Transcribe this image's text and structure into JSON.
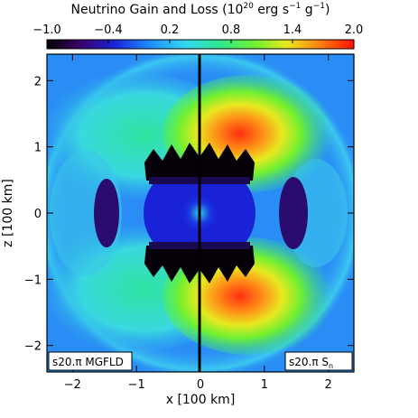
{
  "chart_data": {
    "type": "heatmap",
    "title": "Neutrino Gain and Loss (10",
    "title_exp": "20",
    "title_units_a": " erg s",
    "title_units_exp1": "−1",
    "title_units_b": " g",
    "title_units_exp2": "−1",
    "title_close": ")",
    "xlabel": "x [100 km]",
    "ylabel": "z [100 km]",
    "xlim": [
      -2.4,
      2.4
    ],
    "ylim": [
      -2.4,
      2.4
    ],
    "x_ticks": [
      "−2",
      "−1",
      "0",
      "1",
      "2"
    ],
    "x_tick_values": [
      -2,
      -1,
      0,
      1,
      2
    ],
    "y_ticks": [
      "2",
      "1",
      "0",
      "−1",
      "−2"
    ],
    "y_tick_values": [
      2,
      1,
      0,
      -1,
      -2
    ],
    "colorbar": {
      "range": [
        -1.0,
        2.0
      ],
      "tick_labels": [
        "−1.0",
        "−0.4",
        "0.2",
        "0.8",
        "1.4",
        "2.0"
      ],
      "tick_values": [
        -1.0,
        -0.4,
        0.2,
        0.8,
        1.4,
        2.0
      ]
    },
    "panels": {
      "left_label": "s20.π MGFLD",
      "right_label": "s20.π S",
      "right_label_sub": "n"
    }
  }
}
